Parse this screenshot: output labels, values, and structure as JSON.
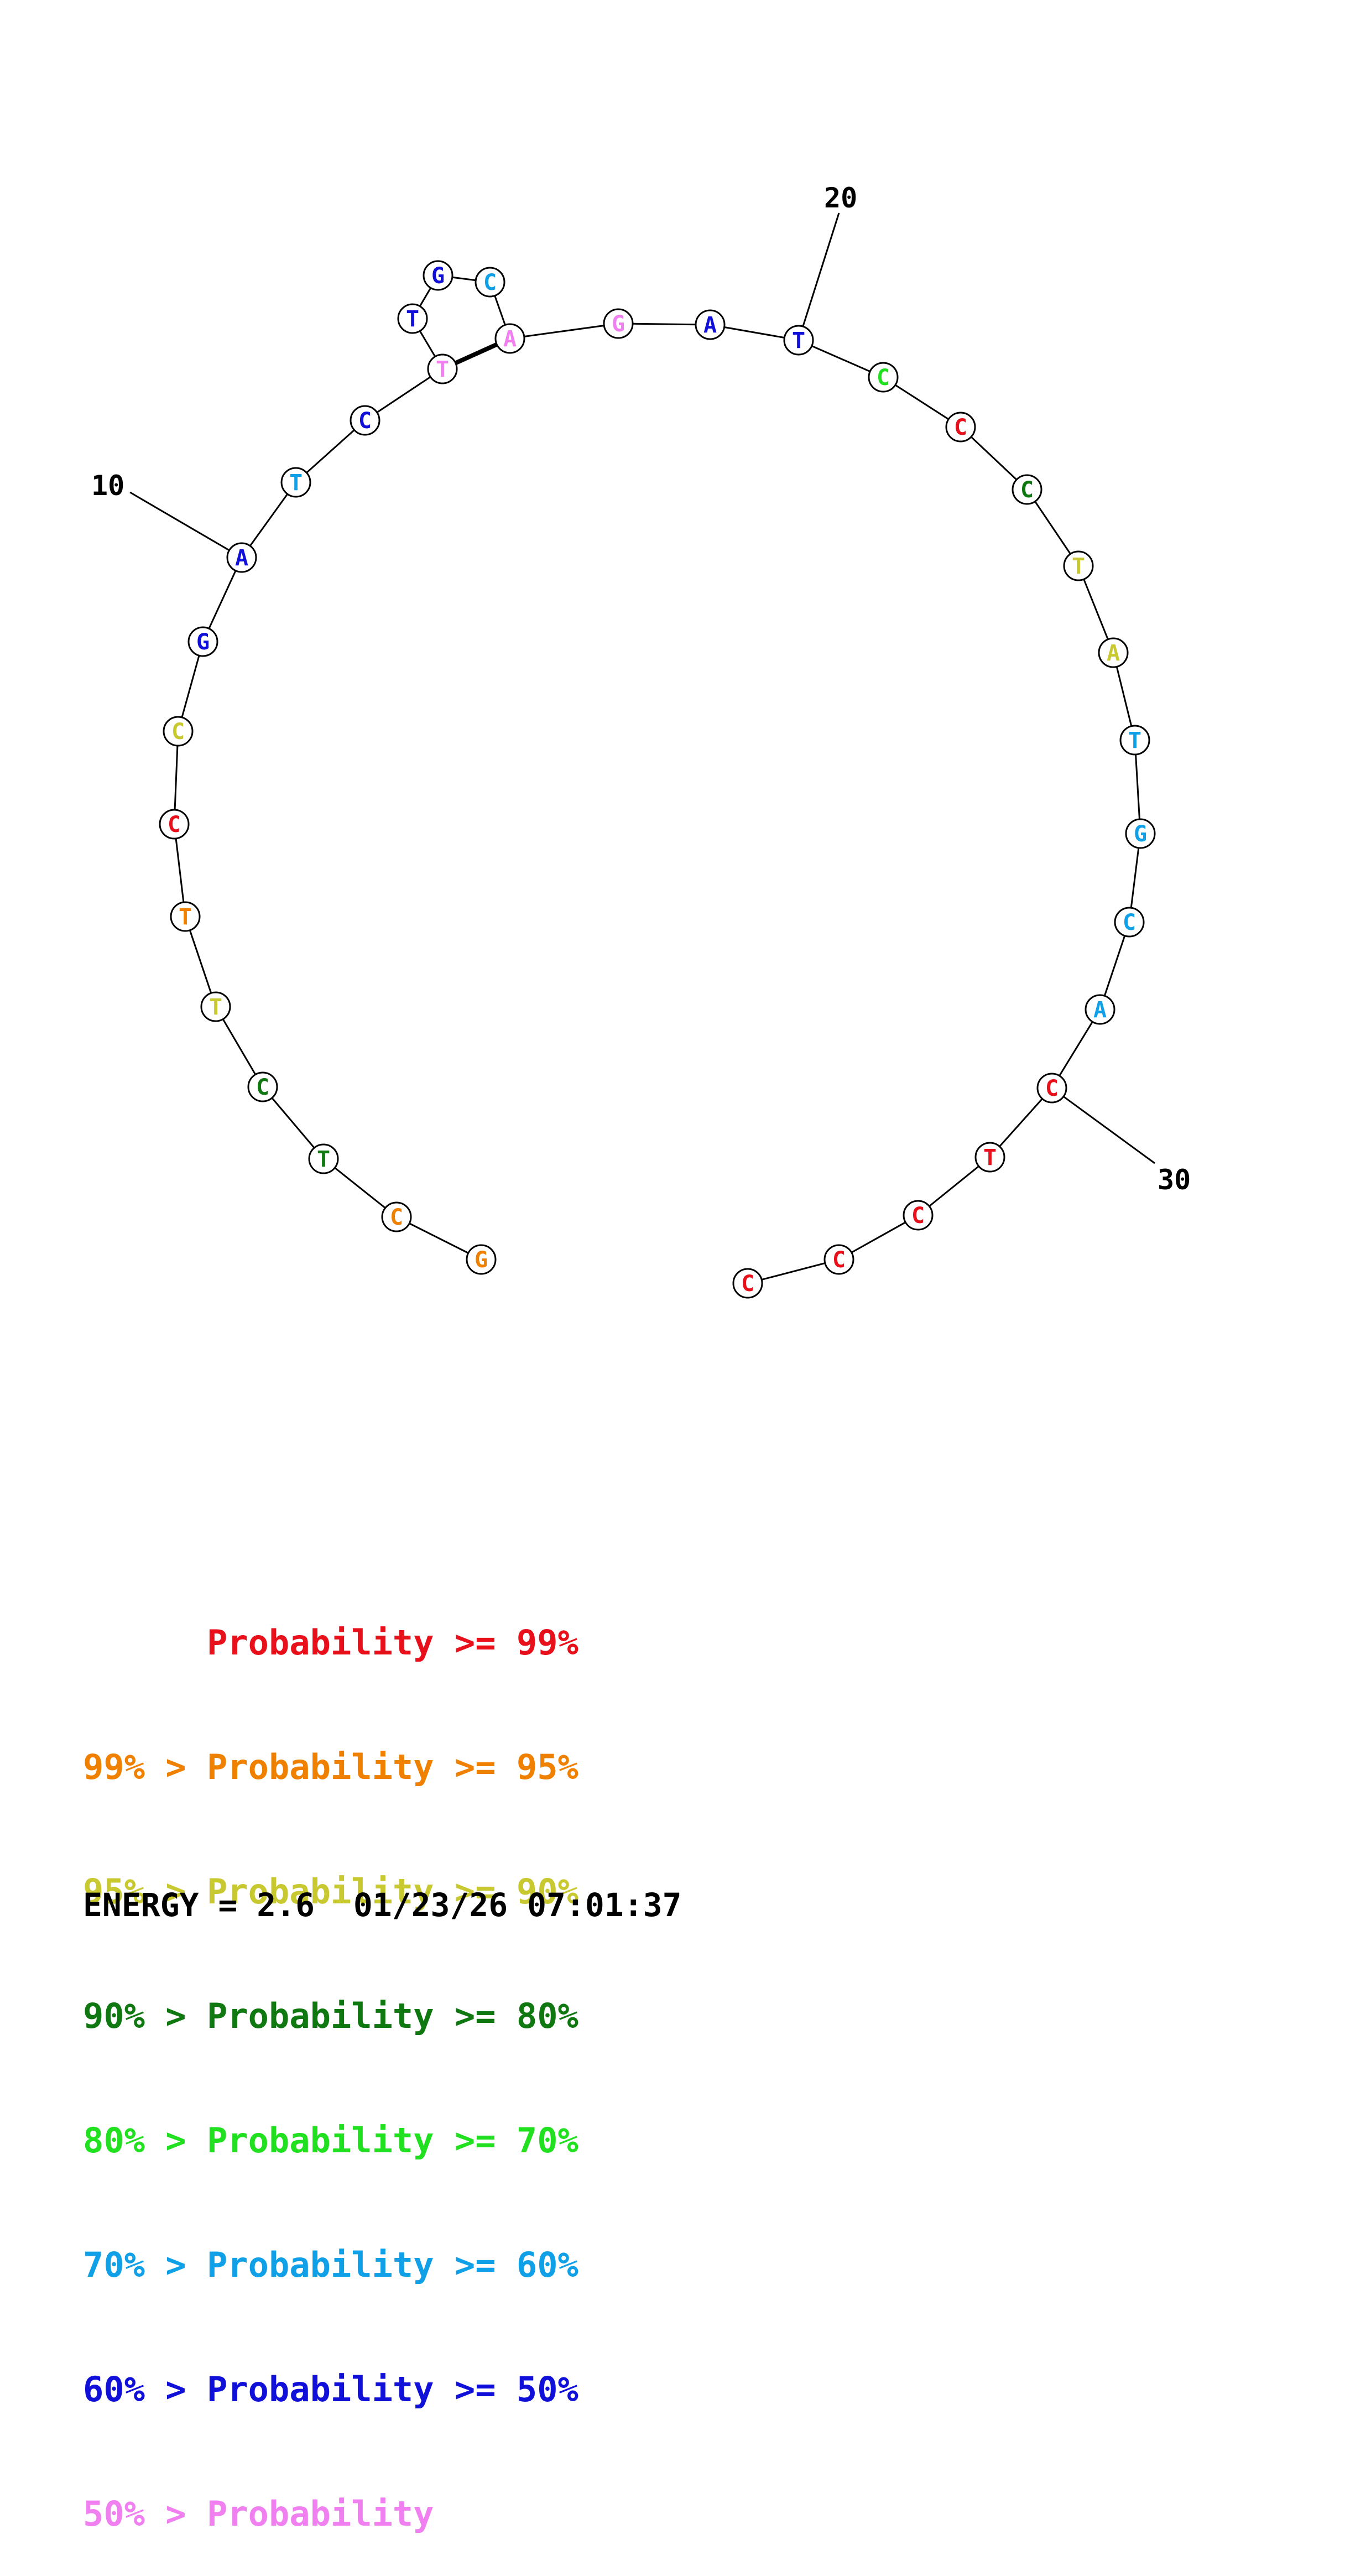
{
  "colors": {
    "p99": "#e8101a",
    "p95": "#f08000",
    "p90": "#c8c830",
    "p80": "#107810",
    "p70": "#20e020",
    "p60": "#10a0e8",
    "p50": "#1010d8",
    "p0": "#f080f0"
  },
  "sequence": [
    {
      "n": 1,
      "base": "G",
      "cls": "p95"
    },
    {
      "n": 2,
      "base": "C",
      "cls": "p95"
    },
    {
      "n": 3,
      "base": "T",
      "cls": "p80"
    },
    {
      "n": 4,
      "base": "C",
      "cls": "p80"
    },
    {
      "n": 5,
      "base": "T",
      "cls": "p90"
    },
    {
      "n": 6,
      "base": "T",
      "cls": "p95"
    },
    {
      "n": 7,
      "base": "C",
      "cls": "p99"
    },
    {
      "n": 8,
      "base": "C",
      "cls": "p90"
    },
    {
      "n": 9,
      "base": "G",
      "cls": "p50"
    },
    {
      "n": 10,
      "base": "A",
      "cls": "p50"
    },
    {
      "n": 11,
      "base": "T",
      "cls": "p60"
    },
    {
      "n": 12,
      "base": "C",
      "cls": "p50"
    },
    {
      "n": 13,
      "base": "T",
      "cls": "p0"
    },
    {
      "n": 14,
      "base": "T",
      "cls": "p50"
    },
    {
      "n": 15,
      "base": "G",
      "cls": "p50"
    },
    {
      "n": 16,
      "base": "C",
      "cls": "p60"
    },
    {
      "n": 17,
      "base": "A",
      "cls": "p0"
    },
    {
      "n": 18,
      "base": "G",
      "cls": "p0"
    },
    {
      "n": 19,
      "base": "A",
      "cls": "p50"
    },
    {
      "n": 20,
      "base": "T",
      "cls": "p50"
    },
    {
      "n": 21,
      "base": "C",
      "cls": "p70"
    },
    {
      "n": 22,
      "base": "C",
      "cls": "p99"
    },
    {
      "n": 23,
      "base": "C",
      "cls": "p80"
    },
    {
      "n": 24,
      "base": "T",
      "cls": "p90"
    },
    {
      "n": 25,
      "base": "A",
      "cls": "p90"
    },
    {
      "n": 26,
      "base": "T",
      "cls": "p60"
    },
    {
      "n": 27,
      "base": "G",
      "cls": "p60"
    },
    {
      "n": 28,
      "base": "C",
      "cls": "p60"
    },
    {
      "n": 29,
      "base": "A",
      "cls": "p60"
    },
    {
      "n": 30,
      "base": "C",
      "cls": "p99"
    },
    {
      "n": 31,
      "base": "T",
      "cls": "p99"
    },
    {
      "n": 32,
      "base": "C",
      "cls": "p99"
    },
    {
      "n": 33,
      "base": "C",
      "cls": "p99"
    },
    {
      "n": 34,
      "base": "C",
      "cls": "p99"
    }
  ],
  "pairs": [
    [
      13,
      17
    ]
  ],
  "index_labels": [
    {
      "at": 10,
      "text": "10"
    },
    {
      "at": 20,
      "text": "20"
    },
    {
      "at": 30,
      "text": "30"
    }
  ],
  "legend": [
    {
      "text": "      Probability >= 99%",
      "cls": "p99"
    },
    {
      "text": "99% > Probability >= 95%",
      "cls": "p95"
    },
    {
      "text": "95% > Probability >= 90%",
      "cls": "p90"
    },
    {
      "text": "90% > Probability >= 80%",
      "cls": "p80"
    },
    {
      "text": "80% > Probability >= 70%",
      "cls": "p70"
    },
    {
      "text": "70% > Probability >= 60%",
      "cls": "p60"
    },
    {
      "text": "60% > Probability >= 50%",
      "cls": "p50"
    },
    {
      "text": "50% > Probability",
      "cls": "p0"
    }
  ],
  "energy_text": "ENERGY = 2.6  01/23/26 07:01:37"
}
